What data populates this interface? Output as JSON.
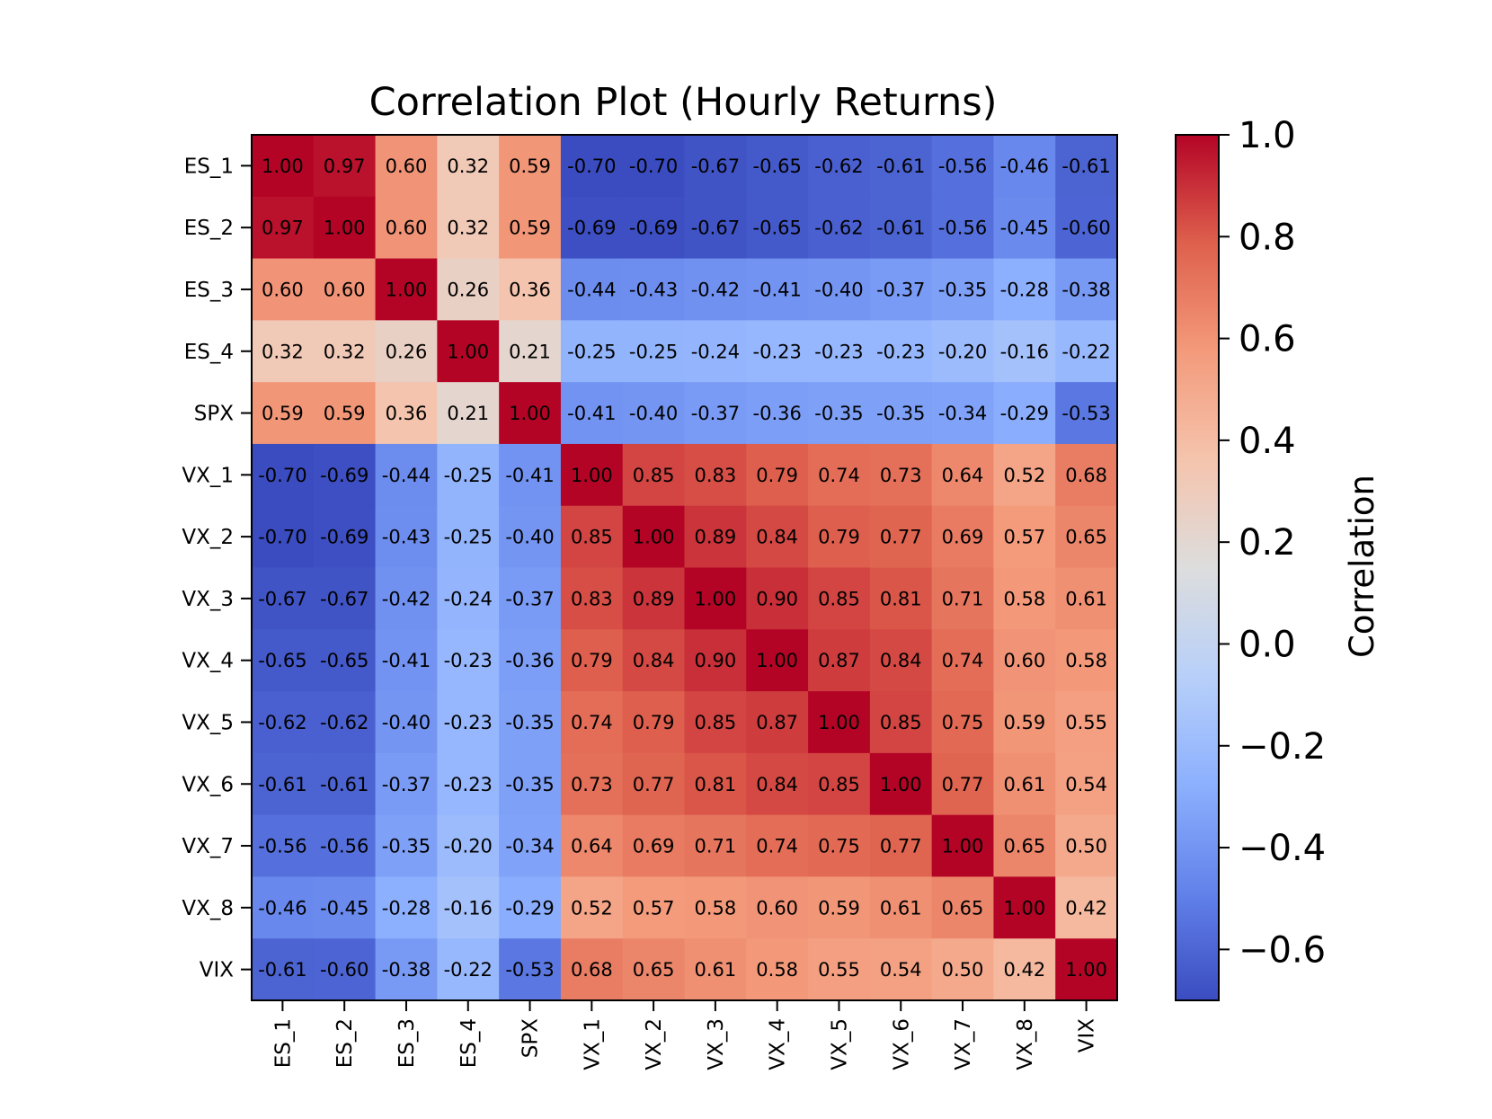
{
  "chart_data": {
    "type": "heatmap",
    "title": "Correlation Plot (Hourly Returns)",
    "labels": [
      "ES_1",
      "ES_2",
      "ES_3",
      "ES_4",
      "SPX",
      "VX_1",
      "VX_2",
      "VX_3",
      "VX_4",
      "VX_5",
      "VX_6",
      "VX_7",
      "VX_8",
      "VIX"
    ],
    "matrix": [
      [
        1.0,
        0.97,
        0.6,
        0.32,
        0.59,
        -0.7,
        -0.7,
        -0.67,
        -0.65,
        -0.62,
        -0.61,
        -0.56,
        -0.46,
        -0.61
      ],
      [
        0.97,
        1.0,
        0.6,
        0.32,
        0.59,
        -0.69,
        -0.69,
        -0.67,
        -0.65,
        -0.62,
        -0.61,
        -0.56,
        -0.45,
        -0.6
      ],
      [
        0.6,
        0.6,
        1.0,
        0.26,
        0.36,
        -0.44,
        -0.43,
        -0.42,
        -0.41,
        -0.4,
        -0.37,
        -0.35,
        -0.28,
        -0.38
      ],
      [
        0.32,
        0.32,
        0.26,
        1.0,
        0.21,
        -0.25,
        -0.25,
        -0.24,
        -0.23,
        -0.23,
        -0.23,
        -0.2,
        -0.16,
        -0.22
      ],
      [
        0.59,
        0.59,
        0.36,
        0.21,
        1.0,
        -0.41,
        -0.4,
        -0.37,
        -0.36,
        -0.35,
        -0.35,
        -0.34,
        -0.29,
        -0.53
      ],
      [
        -0.7,
        -0.69,
        -0.44,
        -0.25,
        -0.41,
        1.0,
        0.85,
        0.83,
        0.79,
        0.74,
        0.73,
        0.64,
        0.52,
        0.68
      ],
      [
        -0.7,
        -0.69,
        -0.43,
        -0.25,
        -0.4,
        0.85,
        1.0,
        0.89,
        0.84,
        0.79,
        0.77,
        0.69,
        0.57,
        0.65
      ],
      [
        -0.67,
        -0.67,
        -0.42,
        -0.24,
        -0.37,
        0.83,
        0.89,
        1.0,
        0.9,
        0.85,
        0.81,
        0.71,
        0.58,
        0.61
      ],
      [
        -0.65,
        -0.65,
        -0.41,
        -0.23,
        -0.36,
        0.79,
        0.84,
        0.9,
        1.0,
        0.87,
        0.84,
        0.74,
        0.6,
        0.58
      ],
      [
        -0.62,
        -0.62,
        -0.4,
        -0.23,
        -0.35,
        0.74,
        0.79,
        0.85,
        0.87,
        1.0,
        0.85,
        0.75,
        0.59,
        0.55
      ],
      [
        -0.61,
        -0.61,
        -0.37,
        -0.23,
        -0.35,
        0.73,
        0.77,
        0.81,
        0.84,
        0.85,
        1.0,
        0.77,
        0.61,
        0.54
      ],
      [
        -0.56,
        -0.56,
        -0.35,
        -0.2,
        -0.34,
        0.64,
        0.69,
        0.71,
        0.74,
        0.75,
        0.77,
        1.0,
        0.65,
        0.5
      ],
      [
        -0.46,
        -0.45,
        -0.28,
        -0.16,
        -0.29,
        0.52,
        0.57,
        0.58,
        0.6,
        0.59,
        0.61,
        0.65,
        1.0,
        0.42
      ],
      [
        -0.61,
        -0.6,
        -0.38,
        -0.22,
        -0.53,
        0.68,
        0.65,
        0.61,
        0.58,
        0.55,
        0.54,
        0.5,
        0.42,
        1.0
      ]
    ],
    "value_format": "0.00",
    "colormap": "coolwarm",
    "color_range": [
      -0.7,
      1.0
    ],
    "colorbar": {
      "label": "Correlation",
      "ticks": [
        -0.6,
        -0.4,
        -0.2,
        0.0,
        0.2,
        0.4,
        0.6,
        0.8,
        1.0
      ],
      "tick_labels": [
        "−0.6",
        "−0.4",
        "−0.2",
        "0.0",
        "0.2",
        "0.4",
        "0.6",
        "0.8",
        "1.0"
      ]
    },
    "grid": false,
    "legend": "colorbar-right"
  }
}
